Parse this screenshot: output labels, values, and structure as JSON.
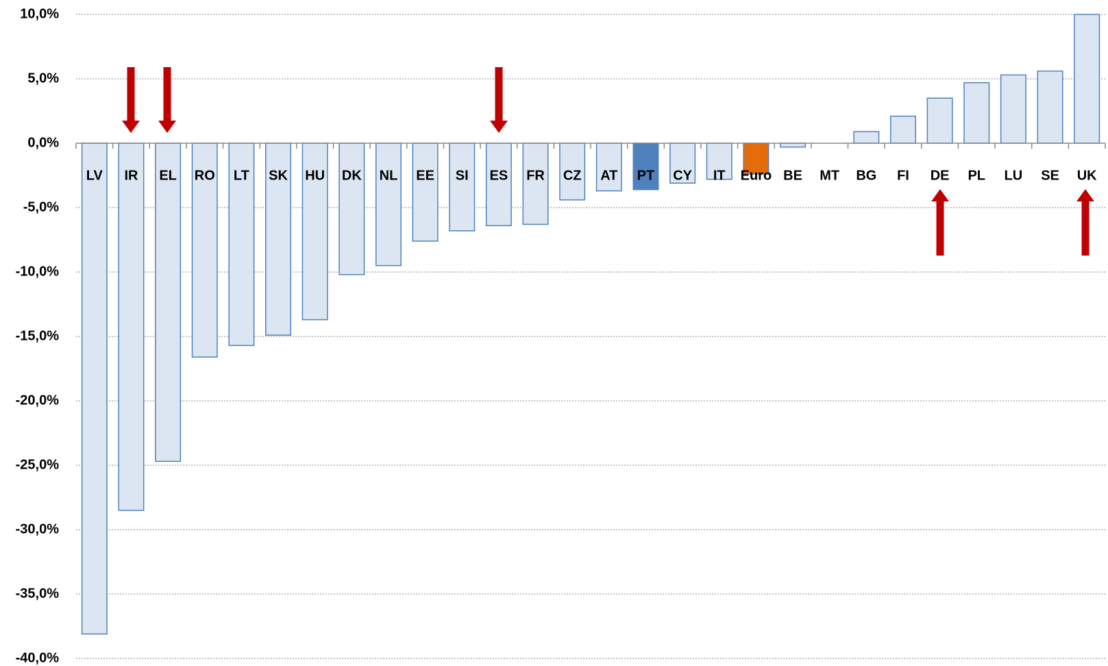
{
  "chart_data": {
    "type": "bar",
    "categories": [
      "LV",
      "IR",
      "EL",
      "RO",
      "LT",
      "SK",
      "HU",
      "DK",
      "NL",
      "EE",
      "SI",
      "ES",
      "FR",
      "CZ",
      "AT",
      "PT",
      "CY",
      "IT",
      "Euro",
      "BE",
      "MT",
      "BG",
      "FI",
      "DE",
      "PL",
      "LU",
      "SE",
      "UK"
    ],
    "values": [
      -38.1,
      -28.5,
      -24.7,
      -16.6,
      -15.7,
      -14.9,
      -13.7,
      -10.2,
      -9.5,
      -7.6,
      -6.8,
      -6.4,
      -6.3,
      -4.4,
      -3.7,
      -3.6,
      -3.1,
      -2.8,
      -2.4,
      -0.3,
      0,
      0.9,
      2.1,
      3.5,
      4.7,
      5.3,
      5.6,
      10.0
    ],
    "colors": [
      "#dce6f2",
      "#dce6f2",
      "#dce6f2",
      "#dce6f2",
      "#dce6f2",
      "#dce6f2",
      "#dce6f2",
      "#dce6f2",
      "#dce6f2",
      "#dce6f2",
      "#dce6f2",
      "#dce6f2",
      "#dce6f2",
      "#dce6f2",
      "#dce6f2",
      "#4f81bd",
      "#dce6f2",
      "#dce6f2",
      "#e46c0a",
      "#dce6f2",
      "#dce6f2",
      "#dce6f2",
      "#dce6f2",
      "#dce6f2",
      "#dce6f2",
      "#dce6f2",
      "#dce6f2",
      "#dce6f2"
    ],
    "ylim": [
      -40,
      10
    ],
    "yticks": [
      {
        "value": -40,
        "label": "-40,0%"
      },
      {
        "value": -35,
        "label": "-35,0%"
      },
      {
        "value": -30,
        "label": "-30,0%"
      },
      {
        "value": -25,
        "label": "-25,0%"
      },
      {
        "value": -20,
        "label": "-20,0%"
      },
      {
        "value": -15,
        "label": "-15,0%"
      },
      {
        "value": -10,
        "label": "-10,0%"
      },
      {
        "value": -5,
        "label": "-5,0%"
      },
      {
        "value": 0,
        "label": "0,0%"
      },
      {
        "value": 5,
        "label": "5,0%"
      },
      {
        "value": 10,
        "label": "10,0%"
      }
    ],
    "grid": true
  }
}
